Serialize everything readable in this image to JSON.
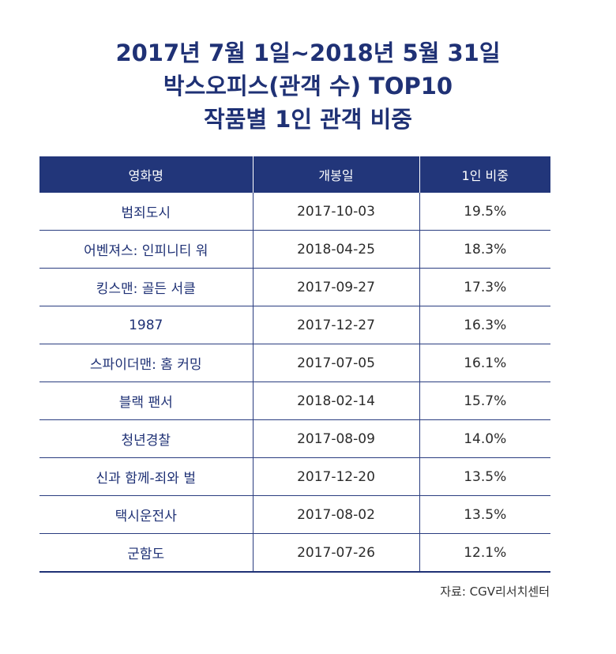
{
  "title": {
    "line1": "2017년 7월 1일~2018년 5월 31일",
    "line2": "박스오피스(관객 수) TOP10",
    "line3": "작품별 1인 관객 비중"
  },
  "table": {
    "headers": [
      "영화명",
      "개봉일",
      "1인 비중"
    ],
    "rows": [
      {
        "movie": "범죄도시",
        "release": "2017-10-03",
        "ratio": "19.5%"
      },
      {
        "movie": "어벤져스: 인피니티 워",
        "release": "2018-04-25",
        "ratio": "18.3%"
      },
      {
        "movie": "킹스맨: 골든 서클",
        "release": "2017-09-27",
        "ratio": "17.3%"
      },
      {
        "movie": "1987",
        "release": "2017-12-27",
        "ratio": "16.3%"
      },
      {
        "movie": "스파이더맨: 홈 커밍",
        "release": "2017-07-05",
        "ratio": "16.1%"
      },
      {
        "movie": "블랙 팬서",
        "release": "2018-02-14",
        "ratio": "15.7%"
      },
      {
        "movie": "청년경찰",
        "release": "2017-08-09",
        "ratio": "14.0%"
      },
      {
        "movie": "신과 함께-죄와 벌",
        "release": "2017-12-20",
        "ratio": "13.5%"
      },
      {
        "movie": "택시운전사",
        "release": "2017-08-02",
        "ratio": "13.5%"
      },
      {
        "movie": "군함도",
        "release": "2017-07-26",
        "ratio": "12.1%"
      }
    ]
  },
  "source": "자료: CGV리서치센터",
  "colors": {
    "primary": "#22367a",
    "header_text": "#ffffff",
    "body_text": "#2b2b2b"
  }
}
